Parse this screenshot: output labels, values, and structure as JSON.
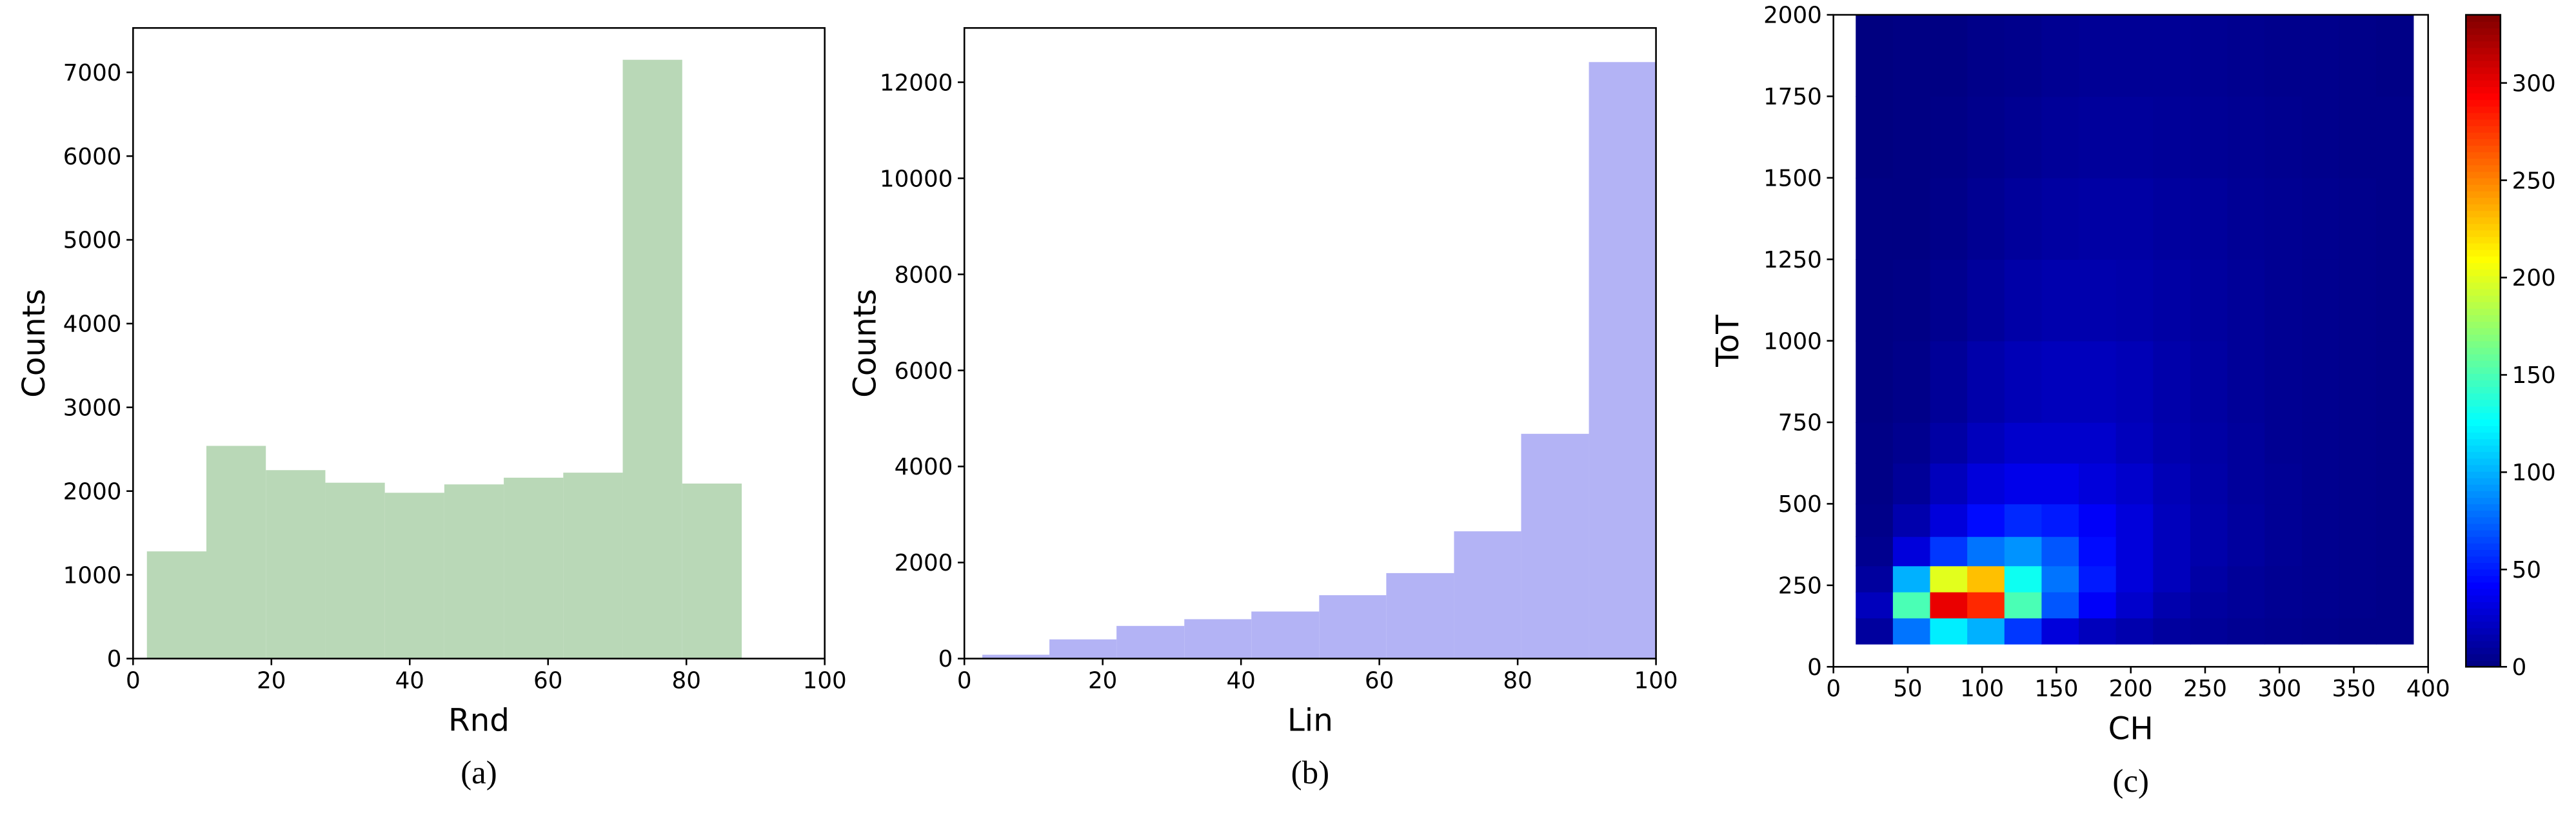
{
  "chart_data": [
    {
      "type": "histogram",
      "xlabel": "Rnd",
      "ylabel": "Counts",
      "caption": "(a)",
      "color": "#b9d8b7",
      "bins": [
        2,
        10.6,
        19.2,
        27.8,
        36.4,
        45,
        53.6,
        62.2,
        70.8,
        79.4,
        88
      ],
      "values": [
        1280,
        2540,
        2250,
        2100,
        1980,
        2080,
        2160,
        2220,
        7150,
        2090
      ],
      "xlim": [
        0,
        100
      ],
      "xticks": [
        0,
        20,
        40,
        60,
        80,
        100
      ],
      "ylim": [
        0,
        7530
      ],
      "yticks": [
        0,
        1000,
        2000,
        3000,
        4000,
        5000,
        6000,
        7000
      ]
    },
    {
      "type": "histogram",
      "xlabel": "Lin",
      "ylabel": "Counts",
      "caption": "(b)",
      "color": "#b3b3f5",
      "bins": [
        2.6,
        12.3,
        22,
        31.8,
        41.5,
        51.3,
        61,
        70.8,
        80.5,
        90.3,
        100
      ],
      "values": [
        80,
        400,
        680,
        820,
        980,
        1320,
        1780,
        2650,
        4680,
        12420
      ],
      "xlim": [
        0,
        100
      ],
      "xticks": [
        0,
        20,
        40,
        60,
        80,
        100
      ],
      "ylim": [
        0,
        13130
      ],
      "yticks": [
        0,
        2000,
        4000,
        6000,
        8000,
        10000,
        12000
      ]
    },
    {
      "type": "heatmap",
      "xlabel": "CH",
      "ylabel": "ToT",
      "caption": "(c)",
      "colormap": "jet",
      "x_edges": [
        15,
        40,
        65,
        90,
        115,
        140,
        165,
        190,
        215,
        240,
        265,
        290,
        315,
        340,
        365,
        390
      ],
      "y_edges": [
        70,
        150,
        230,
        310,
        400,
        500,
        625,
        750,
        1000,
        1250,
        1500,
        1750,
        2000
      ],
      "values": [
        [
          10,
          80,
          120,
          100,
          60,
          30,
          20,
          15,
          10,
          8,
          6,
          5,
          4,
          3,
          3
        ],
        [
          20,
          150,
          300,
          280,
          150,
          70,
          40,
          25,
          15,
          10,
          8,
          6,
          5,
          4,
          3
        ],
        [
          10,
          100,
          200,
          230,
          130,
          80,
          50,
          30,
          20,
          12,
          8,
          6,
          5,
          4,
          3
        ],
        [
          5,
          30,
          60,
          80,
          90,
          70,
          45,
          30,
          20,
          14,
          10,
          7,
          5,
          4,
          3
        ],
        [
          3,
          15,
          30,
          45,
          55,
          50,
          40,
          30,
          20,
          14,
          10,
          7,
          5,
          4,
          3
        ],
        [
          2,
          8,
          20,
          30,
          35,
          35,
          30,
          25,
          18,
          13,
          9,
          7,
          5,
          4,
          3
        ],
        [
          2,
          5,
          12,
          20,
          25,
          25,
          25,
          20,
          15,
          12,
          9,
          6,
          5,
          4,
          3
        ],
        [
          1,
          3,
          8,
          14,
          18,
          20,
          20,
          18,
          14,
          11,
          8,
          6,
          5,
          4,
          3
        ],
        [
          1,
          2,
          5,
          9,
          13,
          15,
          15,
          14,
          12,
          10,
          8,
          6,
          5,
          4,
          3
        ],
        [
          1,
          1,
          3,
          6,
          9,
          11,
          12,
          12,
          10,
          9,
          7,
          6,
          5,
          4,
          3
        ],
        [
          0,
          1,
          2,
          4,
          6,
          8,
          9,
          9,
          8,
          7,
          6,
          5,
          4,
          3,
          3
        ],
        [
          0,
          1,
          1,
          3,
          4,
          6,
          7,
          7,
          7,
          6,
          5,
          4,
          4,
          3,
          2
        ]
      ],
      "xlim": [
        0,
        400
      ],
      "xticks": [
        0,
        50,
        100,
        150,
        200,
        250,
        300,
        350,
        400
      ],
      "ylim": [
        0,
        2000
      ],
      "yticks": [
        0,
        250,
        500,
        750,
        1000,
        1250,
        1500,
        1750,
        2000
      ],
      "clim": [
        0,
        335
      ],
      "cticks": [
        0,
        50,
        100,
        150,
        200,
        250,
        300
      ]
    }
  ]
}
